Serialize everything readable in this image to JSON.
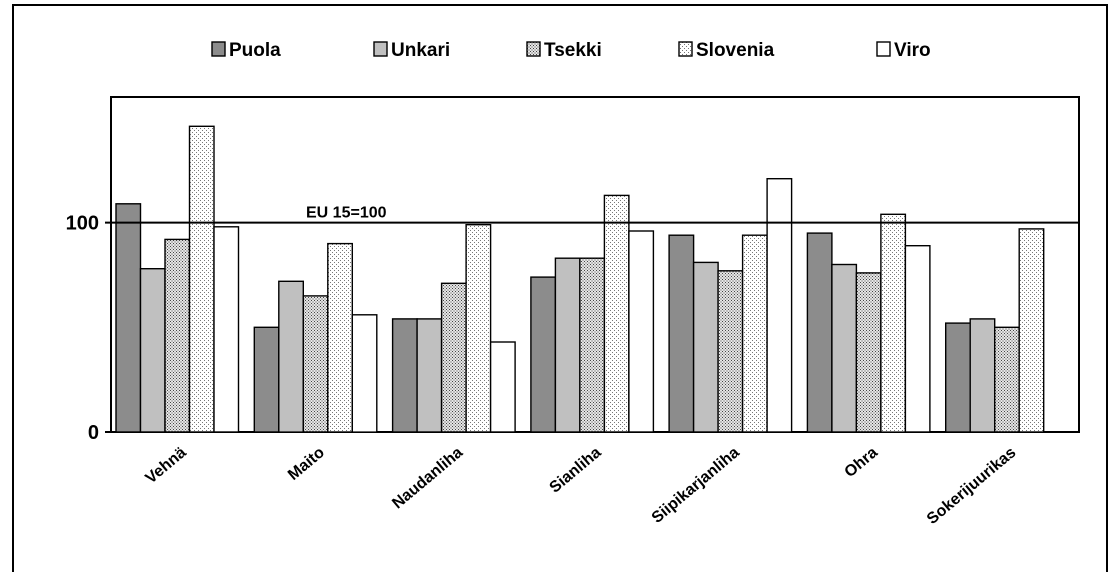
{
  "chart_data": {
    "type": "bar",
    "categories": [
      "Vehnä",
      "Maito",
      "Naudanliha",
      "Sianliha",
      "Siipikarjanliha",
      "Ohra",
      "Sokerijuurikas"
    ],
    "series": [
      {
        "name": "Puola",
        "values": [
          109,
          50,
          54,
          74,
          94,
          95,
          52
        ],
        "color": "#8c8c8c",
        "pattern": "solid-dark"
      },
      {
        "name": "Unkari",
        "values": [
          78,
          72,
          54,
          83,
          81,
          80,
          54
        ],
        "color": "#c0c0c0",
        "pattern": "solid-light"
      },
      {
        "name": "Tsekki",
        "values": [
          92,
          65,
          71,
          83,
          77,
          76,
          50
        ],
        "color": "#d0d0d0",
        "pattern": "dense-dots"
      },
      {
        "name": "Slovenia",
        "values": [
          146,
          90,
          99,
          113,
          94,
          104,
          97
        ],
        "color": "#f0f0f0",
        "pattern": "sparse-dots"
      },
      {
        "name": "Viro",
        "values": [
          98,
          56,
          43,
          96,
          121,
          89,
          null
        ],
        "color": "#ffffff",
        "pattern": "white"
      }
    ],
    "yticks": [
      0,
      100
    ],
    "ylim": [
      0,
      160
    ],
    "reference_line": {
      "value": 100,
      "label": "EU 15=100"
    },
    "legend_position": "top",
    "grid": false
  }
}
